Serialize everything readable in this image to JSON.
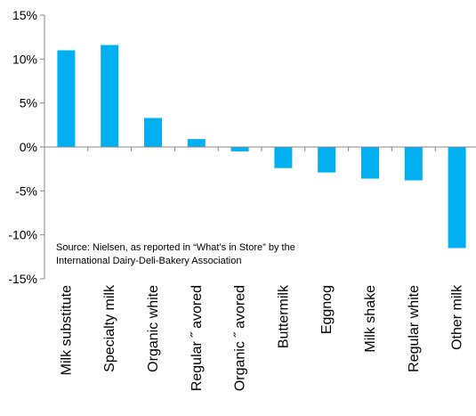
{
  "chart_data": {
    "type": "bar",
    "title": "",
    "xlabel": "",
    "ylabel": "",
    "categories": [
      "Milk substitute",
      "Specialty milk",
      "Organic white",
      "Regular ˝ avored",
      "Organic ˝ avored",
      "Buttermilk",
      "Eggnog",
      "Milk shake",
      "Regular white",
      "Other milk"
    ],
    "values": [
      11.0,
      11.6,
      3.3,
      0.9,
      -0.5,
      -2.4,
      -2.9,
      -3.6,
      -3.8,
      -11.5
    ],
    "unit": "%",
    "ylim": [
      -15,
      15
    ],
    "yticks": [
      -15,
      -10,
      -5,
      0,
      5,
      10,
      15
    ],
    "ytick_labels": [
      "-15%",
      "-10%",
      "-5%",
      "0%",
      "5%",
      "10%",
      "15%"
    ],
    "grid": false,
    "bar_color": "#00B0F0",
    "annotation": [
      "Source: Nielsen, as reported in “What’s in Store” by the",
      "International Dairy-Deli-Bakery Association"
    ]
  }
}
